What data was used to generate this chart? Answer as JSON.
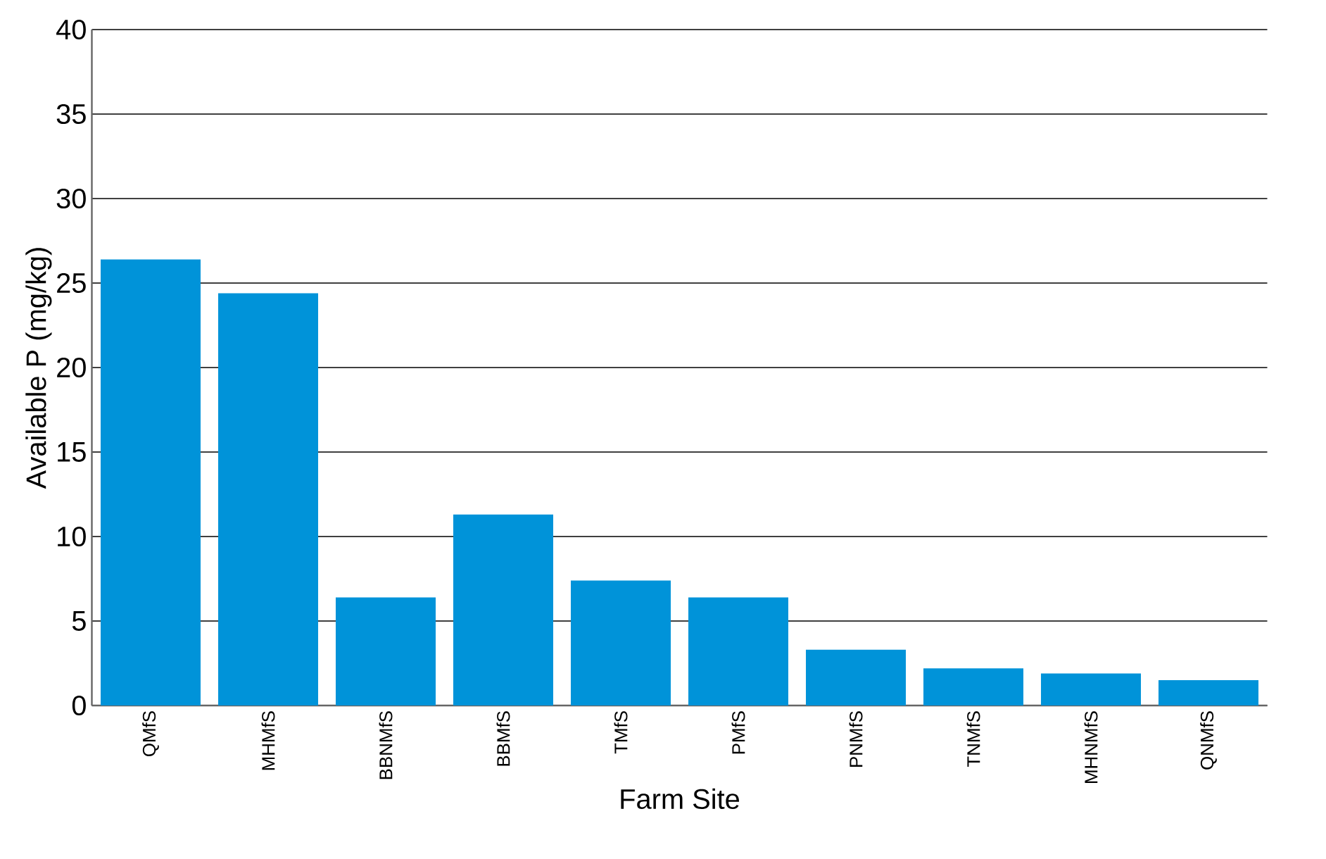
{
  "chart_data": {
    "type": "bar",
    "xlabel": "Farm Site",
    "ylabel": "Available P (mg/kg)",
    "categories": [
      "QMfS",
      "MHMfS",
      "BBNMfS",
      "BBMfS",
      "TMfS",
      "PMfS",
      "PNMfS",
      "TNMfS",
      "MHNMfS",
      "QNMfS"
    ],
    "values": [
      26.4,
      24.4,
      6.4,
      11.3,
      7.4,
      6.4,
      3.3,
      2.2,
      1.9,
      1.5
    ],
    "color": "#0093d9",
    "ylim": [
      0,
      40
    ],
    "yticks": [
      0,
      5,
      10,
      15,
      20,
      25,
      30,
      35,
      40
    ],
    "grid": "y"
  }
}
